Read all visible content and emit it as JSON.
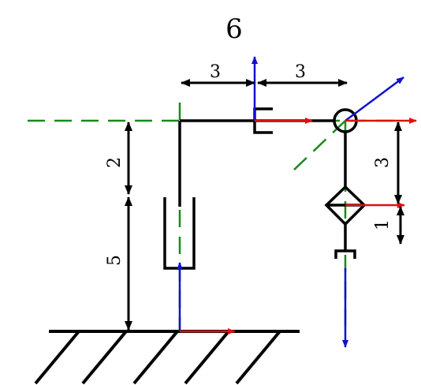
{
  "title": "6",
  "dimensions": {
    "horizontal_left": "3",
    "horizontal_right": "3",
    "vertical_upper_left": "2",
    "vertical_lower_left": "5",
    "vertical_upper_right": "3",
    "vertical_lower_right": "1"
  },
  "colors": {
    "link": "#000000",
    "axis_guide": "#1a8a1a",
    "x_axis_arrow": "#e01010",
    "z_axis_arrow": "#1010d0",
    "background": "#ffffff"
  }
}
